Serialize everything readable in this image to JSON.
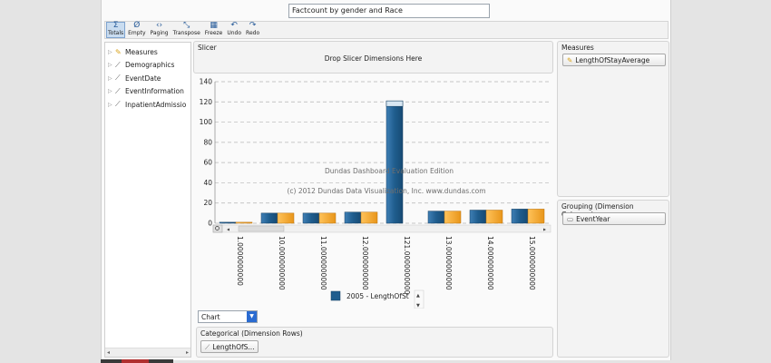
{
  "title_input": {
    "value": "Factcount by gender and Race"
  },
  "toolbar": {
    "buttons": [
      {
        "label": "Totals",
        "icon": "sigma-icon",
        "glyph": "Σ",
        "active": true
      },
      {
        "label": "Empty",
        "icon": "empty-set-icon",
        "glyph": "Ø",
        "active": false
      },
      {
        "label": "Paging",
        "icon": "paging-icon",
        "glyph": "‹›",
        "active": false
      },
      {
        "label": "Transpose",
        "icon": "transpose-icon",
        "glyph": "⤡",
        "active": false
      },
      {
        "label": "Freeze",
        "icon": "freeze-grid-icon",
        "glyph": "▦",
        "active": false
      },
      {
        "label": "Undo",
        "icon": "undo-icon",
        "glyph": "↶",
        "active": false
      },
      {
        "label": "Redo",
        "icon": "redo-icon",
        "glyph": "↷",
        "active": false
      }
    ]
  },
  "tree": {
    "items": [
      {
        "label": "Measures",
        "icon": "measures-icon"
      },
      {
        "label": "Demographics",
        "icon": "dimension-icon"
      },
      {
        "label": "EventDate",
        "icon": "dimension-icon"
      },
      {
        "label": "EventInformation",
        "icon": "dimension-icon"
      },
      {
        "label": "InpatientAdmissio",
        "icon": "dimension-icon"
      }
    ]
  },
  "slicer": {
    "title": "Slicer",
    "drop_text": "Drop Slicer Dimensions Here"
  },
  "measures_panel": {
    "title": "Measures",
    "chip": "LengthOfStayAverage"
  },
  "grouping_panel": {
    "title": "Grouping (Dimension Columns)",
    "chip": "EventYear"
  },
  "categorical_panel": {
    "title": "Categorical (Dimension Rows)",
    "chip": "LengthOfS..."
  },
  "view_select": {
    "value": "Chart"
  },
  "watermark": {
    "line1": "Dundas Dashboard Evaluation Edition",
    "line2": "(c) 2012 Dundas Data Visualization, Inc. www.dundas.com"
  },
  "colors": {
    "series1": "#1f5d8e",
    "series2": "#f5a623",
    "accent": "#2a6bd1"
  },
  "chart_data": {
    "type": "bar",
    "ylim": [
      0,
      140
    ],
    "yticks": [
      0,
      20,
      40,
      60,
      80,
      100,
      120,
      140
    ],
    "categories": [
      "1.0000000000",
      "10.0000000000",
      "11.0000000000",
      "12.0000000000",
      "121.0000000000",
      "13.0000000000",
      "14.0000000000",
      "15.0000000000"
    ],
    "series": [
      {
        "name": "2005 - LengthOfSt",
        "values": [
          1,
          10,
          10,
          11,
          121,
          12,
          13,
          14
        ]
      },
      {
        "values": [
          1,
          10,
          10,
          11,
          null,
          12,
          13,
          14
        ]
      }
    ],
    "legend": "bottom"
  }
}
